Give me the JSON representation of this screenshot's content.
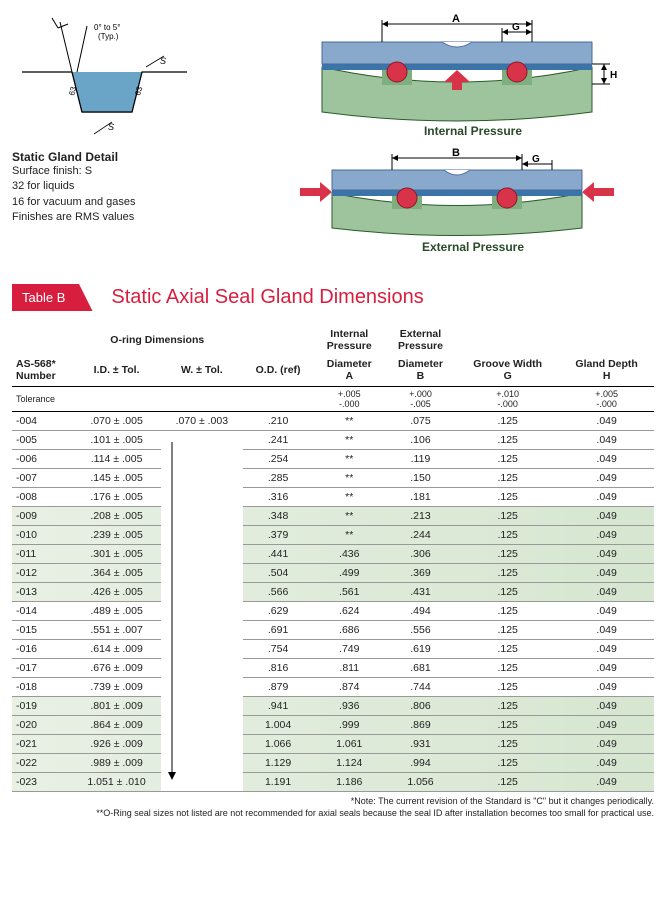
{
  "diagrams": {
    "gland_detail": {
      "title": "Static Gland Detail",
      "lines": [
        "Surface finish: S",
        "32 for liquids",
        "16 for vacuum and gases",
        "Finishes are RMS values"
      ],
      "angle_label": "0° to 5°\n(Typ.)",
      "s_marks": [
        "S",
        "S",
        "S"
      ],
      "radii": [
        "63",
        "63"
      ],
      "groove_fill": "#6aa5c7",
      "stroke": "#000000"
    },
    "internal": {
      "label": "Internal Pressure",
      "dim_A": "A",
      "dim_G": "G",
      "dim_H": "H",
      "top_plate_fill": "#88a8cc",
      "body_fill": "#9dc49d",
      "gap_fill": "#3a74a8",
      "oring_fill": "#d9334a",
      "arrow_fill": "#d9334a"
    },
    "external": {
      "label": "External Pressure",
      "dim_B": "B",
      "dim_G": "G"
    }
  },
  "section": {
    "tag": "Table B",
    "title": "Static Axial Seal Gland Dimensions"
  },
  "table": {
    "group_headers": {
      "oring": "O-ring Dimensions",
      "internal": "Internal\nPressure",
      "external": "External\nPressure"
    },
    "columns": {
      "number": "AS-568*\nNumber",
      "id": "I.D. ± Tol.",
      "w": "W. ± Tol.",
      "od": "O.D. (ref)",
      "A": "Diameter\nA",
      "B": "Diameter\nB",
      "G": "Groove Width\nG",
      "H": "Gland Depth\nH"
    },
    "tolerance_label": "Tolerance",
    "tolerances": {
      "A": "+.005\n-.000",
      "B": "+.000\n-.005",
      "G": "+.010\n-.000",
      "H": "+.005\n-.000"
    },
    "rows": [
      {
        "n": "-004",
        "id": ".070 ± .005",
        "w": ".070 ± .003",
        "od": ".210",
        "A": "**",
        "B": ".075",
        "G": ".125",
        "H": ".049"
      },
      {
        "n": "-005",
        "id": ".101 ± .005",
        "w": "",
        "od": ".241",
        "A": "**",
        "B": ".106",
        "G": ".125",
        "H": ".049"
      },
      {
        "n": "-006",
        "id": ".114 ± .005",
        "w": "",
        "od": ".254",
        "A": "**",
        "B": ".119",
        "G": ".125",
        "H": ".049"
      },
      {
        "n": "-007",
        "id": ".145 ± .005",
        "w": "",
        "od": ".285",
        "A": "**",
        "B": ".150",
        "G": ".125",
        "H": ".049"
      },
      {
        "n": "-008",
        "id": ".176 ± .005",
        "w": "",
        "od": ".316",
        "A": "**",
        "B": ".181",
        "G": ".125",
        "H": ".049"
      },
      {
        "n": "-009",
        "id": ".208 ± .005",
        "w": "",
        "od": ".348",
        "A": "**",
        "B": ".213",
        "G": ".125",
        "H": ".049",
        "shade": true
      },
      {
        "n": "-010",
        "id": ".239 ± .005",
        "w": "",
        "od": ".379",
        "A": "**",
        "B": ".244",
        "G": ".125",
        "H": ".049",
        "shade": true
      },
      {
        "n": "-011",
        "id": ".301 ± .005",
        "w": "",
        "od": ".441",
        "A": ".436",
        "B": ".306",
        "G": ".125",
        "H": ".049",
        "shade": true
      },
      {
        "n": "-012",
        "id": ".364 ± .005",
        "w": "",
        "od": ".504",
        "A": ".499",
        "B": ".369",
        "G": ".125",
        "H": ".049",
        "shade": true
      },
      {
        "n": "-013",
        "id": ".426 ± .005",
        "w": "",
        "od": ".566",
        "A": ".561",
        "B": ".431",
        "G": ".125",
        "H": ".049",
        "shade": true
      },
      {
        "n": "-014",
        "id": ".489 ± .005",
        "w": "",
        "od": ".629",
        "A": ".624",
        "B": ".494",
        "G": ".125",
        "H": ".049"
      },
      {
        "n": "-015",
        "id": ".551 ± .007",
        "w": "",
        "od": ".691",
        "A": ".686",
        "B": ".556",
        "G": ".125",
        "H": ".049"
      },
      {
        "n": "-016",
        "id": ".614 ± .009",
        "w": "",
        "od": ".754",
        "A": ".749",
        "B": ".619",
        "G": ".125",
        "H": ".049"
      },
      {
        "n": "-017",
        "id": ".676 ± .009",
        "w": "",
        "od": ".816",
        "A": ".811",
        "B": ".681",
        "G": ".125",
        "H": ".049"
      },
      {
        "n": "-018",
        "id": ".739 ± .009",
        "w": "",
        "od": ".879",
        "A": ".874",
        "B": ".744",
        "G": ".125",
        "H": ".049"
      },
      {
        "n": "-019",
        "id": ".801 ± .009",
        "w": "",
        "od": ".941",
        "A": ".936",
        "B": ".806",
        "G": ".125",
        "H": ".049",
        "shade": true
      },
      {
        "n": "-020",
        "id": ".864 ± .009",
        "w": "",
        "od": "1.004",
        "A": ".999",
        "B": ".869",
        "G": ".125",
        "H": ".049",
        "shade": true
      },
      {
        "n": "-021",
        "id": ".926 ± .009",
        "w": "",
        "od": "1.066",
        "A": "1.061",
        "B": ".931",
        "G": ".125",
        "H": ".049",
        "shade": true
      },
      {
        "n": "-022",
        "id": ".989 ± .009",
        "w": "",
        "od": "1.129",
        "A": "1.124",
        "B": ".994",
        "G": ".125",
        "H": ".049",
        "shade": true
      },
      {
        "n": "-023",
        "id": "1.051 ± .010",
        "w": "",
        "od": "1.191",
        "A": "1.186",
        "B": "1.056",
        "G": ".125",
        "H": ".049",
        "shade": true
      }
    ],
    "w_arrow_span": {
      "from": 1,
      "to": 19
    }
  },
  "footnotes": {
    "note1": "*Note: The current revision of the Standard is \"C\" but it changes periodically.",
    "note2": "**O-Ring seal sizes not listed are not recommended for axial seals because the seal ID after installation becomes too small for practical use."
  }
}
